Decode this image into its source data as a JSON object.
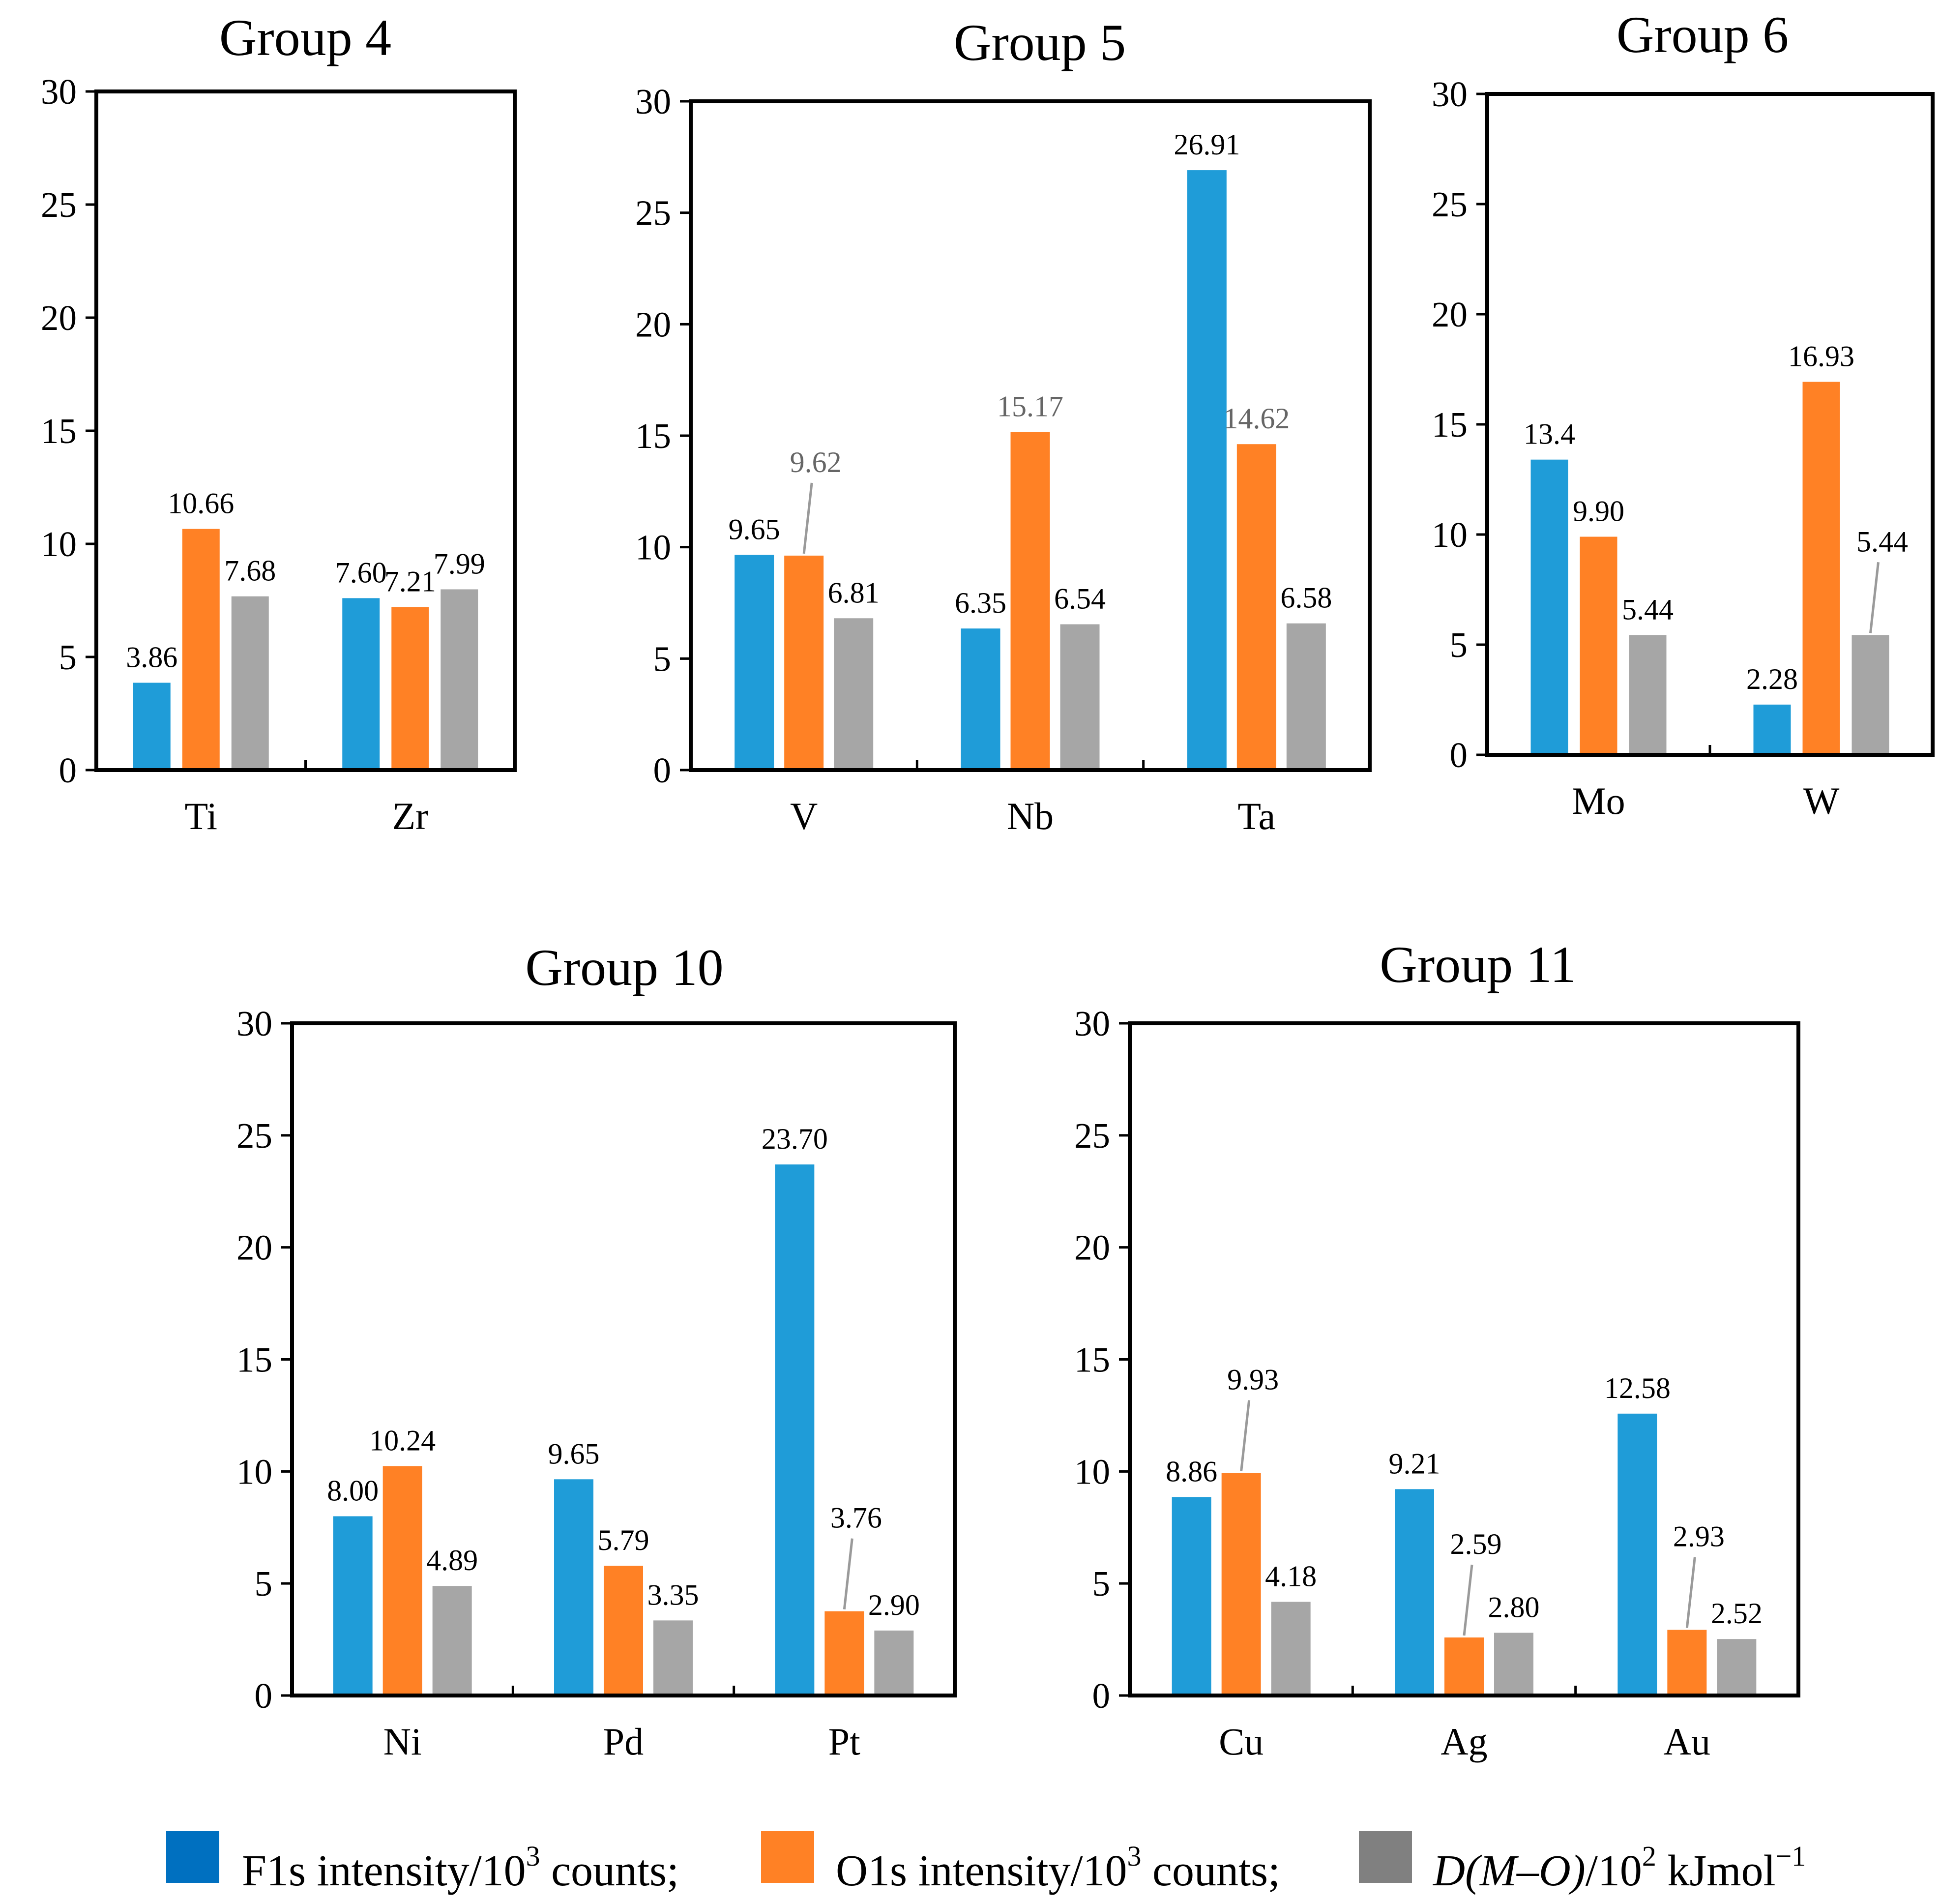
{
  "chart_data": [
    {
      "type": "bar",
      "title": "Group 4",
      "categories": [
        "Ti",
        "Zr"
      ],
      "ylim": [
        0,
        30
      ],
      "yticks": [
        "0",
        "5",
        "10",
        "15",
        "20",
        "25",
        "30"
      ],
      "series": [
        {
          "name": "F1s intensity",
          "values": [
            3.86,
            7.6
          ],
          "labels": [
            "3.86",
            "7.60"
          ]
        },
        {
          "name": "O1s intensity",
          "values": [
            10.66,
            7.21
          ],
          "labels": [
            "10.66",
            "7.21"
          ]
        },
        {
          "name": "D(M–O)",
          "values": [
            7.68,
            7.99
          ],
          "labels": [
            "7.68",
            "7.99"
          ]
        }
      ]
    },
    {
      "type": "bar",
      "title": "Group 5",
      "categories": [
        "V",
        "Nb",
        "Ta"
      ],
      "ylim": [
        0,
        30
      ],
      "yticks": [
        "0",
        "5",
        "10",
        "15",
        "20",
        "25",
        "30"
      ],
      "series": [
        {
          "name": "F1s intensity",
          "values": [
            9.65,
            6.35,
            26.91
          ],
          "labels": [
            "9.65",
            "6.35",
            "26.91"
          ]
        },
        {
          "name": "O1s intensity",
          "values": [
            9.62,
            15.17,
            14.62
          ],
          "labels": [
            "9.62",
            "15.17",
            "14.62"
          ]
        },
        {
          "name": "D(M–O)",
          "values": [
            6.81,
            6.54,
            6.58
          ],
          "labels": [
            "6.81",
            "6.54",
            "6.58"
          ]
        }
      ]
    },
    {
      "type": "bar",
      "title": "Group 6",
      "categories": [
        "Mo",
        "W"
      ],
      "ylim": [
        0,
        30
      ],
      "yticks": [
        "0",
        "5",
        "10",
        "15",
        "20",
        "25",
        "30"
      ],
      "series": [
        {
          "name": "F1s intensity",
          "values": [
            13.4,
            2.28
          ],
          "labels": [
            "13.4",
            "2.28"
          ]
        },
        {
          "name": "O1s intensity",
          "values": [
            9.9,
            16.93
          ],
          "labels": [
            "9.90",
            "16.93"
          ]
        },
        {
          "name": "D(M–O)",
          "values": [
            5.44,
            5.44
          ],
          "labels": [
            "5.44",
            "5.44"
          ]
        }
      ]
    },
    {
      "type": "bar",
      "title": "Group 10",
      "categories": [
        "Ni",
        "Pd",
        "Pt"
      ],
      "ylim": [
        0,
        30
      ],
      "yticks": [
        "0",
        "5",
        "10",
        "15",
        "20",
        "25",
        "30"
      ],
      "series": [
        {
          "name": "F1s intensity",
          "values": [
            8.0,
            9.65,
            23.7
          ],
          "labels": [
            "8.00",
            "9.65",
            "23.70"
          ]
        },
        {
          "name": "O1s intensity",
          "values": [
            10.24,
            5.79,
            3.76
          ],
          "labels": [
            "10.24",
            "5.79",
            "3.76"
          ]
        },
        {
          "name": "D(M–O)",
          "values": [
            4.89,
            3.35,
            2.9
          ],
          "labels": [
            "4.89",
            "3.35",
            "2.90"
          ]
        }
      ]
    },
    {
      "type": "bar",
      "title": "Group 11",
      "categories": [
        "Cu",
        "Ag",
        "Au"
      ],
      "ylim": [
        0,
        30
      ],
      "yticks": [
        "0",
        "5",
        "10",
        "15",
        "20",
        "25",
        "30"
      ],
      "series": [
        {
          "name": "F1s intensity",
          "values": [
            8.86,
            9.21,
            12.58
          ],
          "labels": [
            "8.86",
            "9.21",
            "12.58"
          ]
        },
        {
          "name": "O1s intensity",
          "values": [
            9.93,
            2.59,
            2.93
          ],
          "labels": [
            "9.93",
            "2.59",
            "2.93"
          ]
        },
        {
          "name": "D(M–O)",
          "values": [
            4.18,
            2.8,
            2.52
          ],
          "labels": [
            "4.18",
            "2.80",
            "2.52"
          ]
        }
      ]
    }
  ],
  "colors": {
    "f1s": "#1F9CD8",
    "o1s": "#FF8125",
    "dmo": "#A6A6A6",
    "legend_f1s": "#0070C0",
    "legend_o1s": "#FF8125",
    "legend_dmo": "#808080"
  },
  "legend": {
    "f1s": {
      "pre": "F1s intensity/10",
      "sup": "3",
      "post": " counts;"
    },
    "o1s": {
      "pre": "O1s intensity/10",
      "sup": "3",
      "post": " counts;"
    },
    "dmo": {
      "italic": "D(M–O)",
      "pre": "/10",
      "sup": "2",
      "post": " kJmol",
      "sup2": "−1"
    }
  }
}
